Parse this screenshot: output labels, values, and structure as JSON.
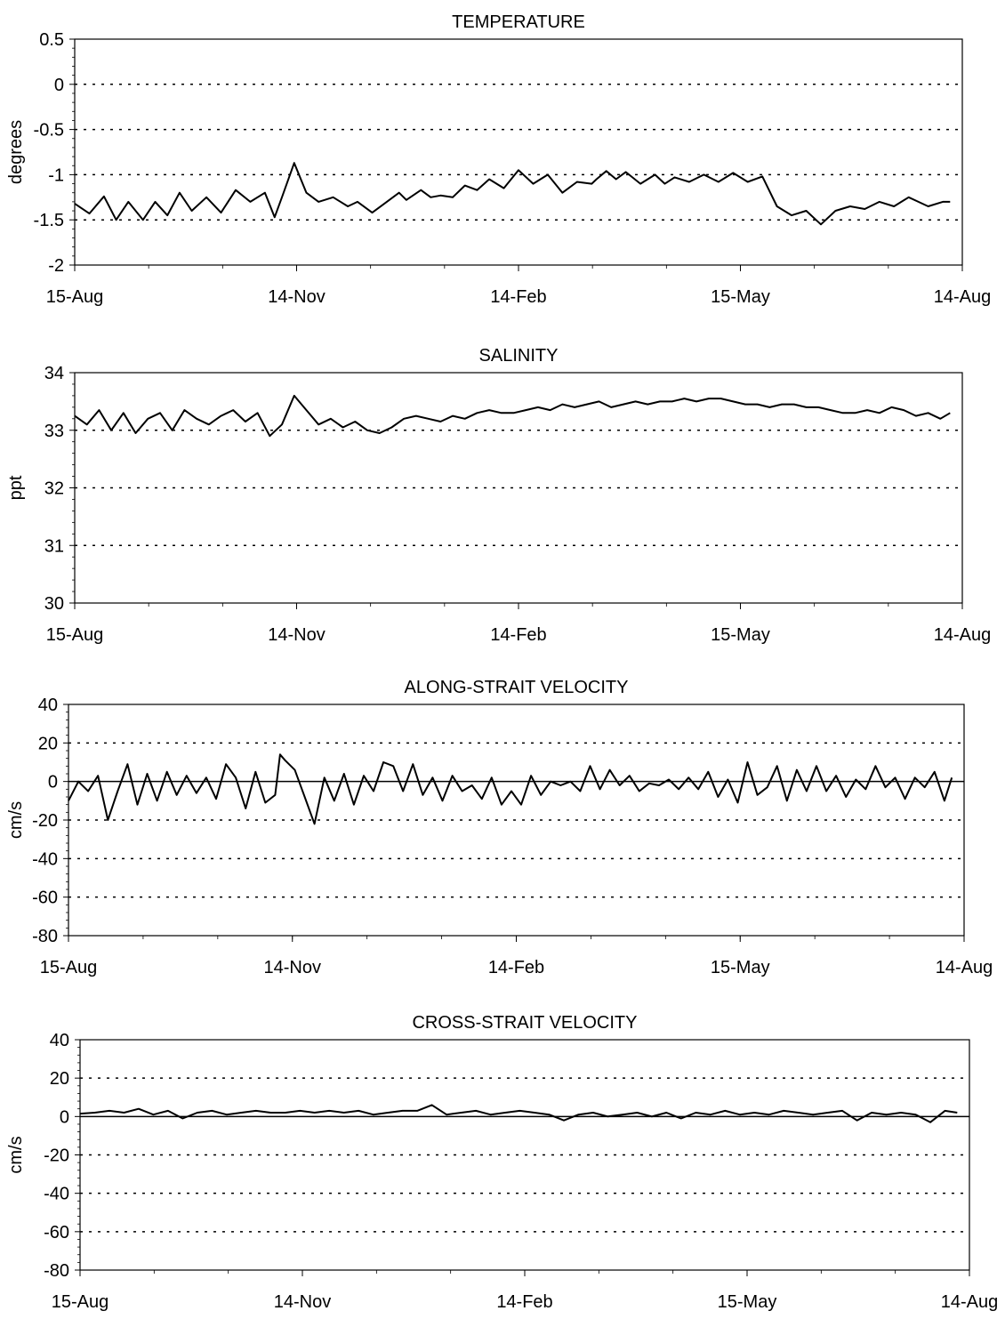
{
  "chart_data": [
    {
      "type": "line",
      "title": "TEMPERATURE",
      "ylabel": "degrees",
      "ylim": [
        -2,
        0.5
      ],
      "yticks": [
        "0.5",
        "0",
        "-0.5",
        "-1",
        "-1.5",
        "-2"
      ],
      "xticks": [
        "15-Aug",
        "14-Nov",
        "14-Feb",
        "15-May",
        "14-Aug"
      ],
      "xlim": [
        0,
        364
      ],
      "grid": "dotted horizontal",
      "zero_line": false,
      "series": [
        {
          "color": "#000000",
          "x": [
            0,
            6,
            12,
            17,
            22,
            28,
            33,
            38,
            43,
            48,
            54,
            60,
            66,
            72,
            78,
            82,
            85,
            90,
            95,
            100,
            106,
            112,
            116,
            122,
            128,
            133,
            136,
            142,
            146,
            150,
            155,
            160,
            165,
            170,
            176,
            182,
            188,
            194,
            200,
            206,
            212,
            214,
            218,
            222,
            226,
            232,
            238,
            242,
            246,
            252,
            258,
            264,
            270,
            276,
            282,
            288,
            294,
            300,
            306,
            312,
            318,
            324,
            330,
            336,
            342,
            346,
            350,
            356,
            359
          ],
          "values": [
            -1.32,
            -1.43,
            -1.24,
            -1.5,
            -1.3,
            -1.5,
            -1.3,
            -1.45,
            -1.2,
            -1.4,
            -1.25,
            -1.42,
            -1.17,
            -1.3,
            -1.2,
            -1.47,
            -1.25,
            -0.87,
            -1.2,
            -1.3,
            -1.25,
            -1.35,
            -1.3,
            -1.42,
            -1.3,
            -1.2,
            -1.28,
            -1.17,
            -1.25,
            -1.23,
            -1.25,
            -1.12,
            -1.17,
            -1.05,
            -1.15,
            -0.95,
            -1.1,
            -1.0,
            -1.2,
            -1.08,
            -1.1,
            -1.05,
            -0.96,
            -1.05,
            -0.97,
            -1.1,
            -1.0,
            -1.1,
            -1.03,
            -1.08,
            -1.0,
            -1.08,
            -0.98,
            -1.08,
            -1.02,
            -1.35,
            -1.45,
            -1.4,
            -1.55,
            -1.4,
            -1.35,
            -1.38,
            -1.3,
            -1.35,
            -1.25,
            -1.3,
            -1.35,
            -1.3,
            -1.3
          ]
        }
      ]
    },
    {
      "type": "line",
      "title": "SALINITY",
      "ylabel": "ppt",
      "ylim": [
        30,
        34
      ],
      "yticks": [
        "34",
        "33",
        "32",
        "31",
        "30"
      ],
      "xticks": [
        "15-Aug",
        "14-Nov",
        "14-Feb",
        "15-May",
        "14-Aug"
      ],
      "xlim": [
        0,
        364
      ],
      "grid": "dotted horizontal",
      "zero_line": false,
      "series": [
        {
          "color": "#000000",
          "x": [
            0,
            5,
            10,
            15,
            20,
            25,
            30,
            35,
            40,
            45,
            50,
            55,
            60,
            65,
            70,
            75,
            80,
            85,
            90,
            95,
            100,
            105,
            110,
            115,
            120,
            125,
            130,
            135,
            140,
            145,
            150,
            155,
            160,
            165,
            170,
            175,
            180,
            185,
            190,
            195,
            200,
            205,
            210,
            215,
            220,
            225,
            230,
            235,
            240,
            245,
            250,
            255,
            260,
            265,
            270,
            275,
            280,
            285,
            290,
            295,
            300,
            305,
            310,
            315,
            320,
            325,
            330,
            335,
            340,
            345,
            350,
            355,
            359
          ],
          "values": [
            33.25,
            33.1,
            33.35,
            33.0,
            33.3,
            32.95,
            33.2,
            33.3,
            33.0,
            33.35,
            33.2,
            33.1,
            33.25,
            33.35,
            33.15,
            33.3,
            32.9,
            33.1,
            33.6,
            33.35,
            33.1,
            33.2,
            33.05,
            33.15,
            33.0,
            32.95,
            33.05,
            33.2,
            33.25,
            33.2,
            33.15,
            33.25,
            33.2,
            33.3,
            33.35,
            33.3,
            33.3,
            33.35,
            33.4,
            33.35,
            33.45,
            33.4,
            33.45,
            33.5,
            33.4,
            33.45,
            33.5,
            33.45,
            33.5,
            33.5,
            33.55,
            33.5,
            33.55,
            33.55,
            33.5,
            33.45,
            33.45,
            33.4,
            33.45,
            33.45,
            33.4,
            33.4,
            33.35,
            33.3,
            33.3,
            33.35,
            33.3,
            33.4,
            33.35,
            33.25,
            33.3,
            33.2,
            33.3
          ]
        }
      ]
    },
    {
      "type": "line",
      "title": "ALONG-STRAIT VELOCITY",
      "ylabel": "cm/s",
      "ylim": [
        -80,
        40
      ],
      "yticks": [
        "40",
        "20",
        "0",
        "-20",
        "-40",
        "-60",
        "-80"
      ],
      "xticks": [
        "15-Aug",
        "14-Nov",
        "14-Feb",
        "15-May",
        "14-Aug"
      ],
      "xlim": [
        0,
        364
      ],
      "grid": "dotted horizontal",
      "zero_line": true,
      "series": [
        {
          "color": "#000000",
          "x": [
            0,
            4,
            8,
            12,
            16,
            20,
            24,
            28,
            32,
            36,
            40,
            44,
            48,
            52,
            56,
            60,
            64,
            68,
            72,
            76,
            80,
            84,
            86,
            88,
            92,
            96,
            100,
            104,
            108,
            112,
            116,
            120,
            124,
            128,
            132,
            136,
            140,
            144,
            148,
            152,
            156,
            160,
            164,
            168,
            172,
            176,
            180,
            184,
            188,
            192,
            196,
            200,
            204,
            208,
            212,
            216,
            220,
            224,
            228,
            232,
            236,
            240,
            244,
            248,
            252,
            256,
            260,
            264,
            268,
            272,
            276,
            280,
            284,
            288,
            292,
            296,
            300,
            304,
            308,
            312,
            316,
            320,
            324,
            328,
            332,
            336,
            340,
            344,
            348,
            352,
            356,
            359
          ],
          "values": [
            -10,
            0,
            -5,
            3,
            -20,
            -5,
            9,
            -12,
            4,
            -10,
            5,
            -7,
            3,
            -6,
            2,
            -9,
            9,
            2,
            -14,
            5,
            -11,
            -7,
            14,
            11,
            6,
            -8,
            -22,
            2,
            -10,
            4,
            -12,
            3,
            -5,
            10,
            8,
            -5,
            9,
            -7,
            2,
            -10,
            3,
            -5,
            -2,
            -9,
            2,
            -12,
            -5,
            -12,
            3,
            -7,
            0,
            -2,
            0,
            -5,
            8,
            -4,
            6,
            -2,
            3,
            -5,
            -1,
            -2,
            1,
            -4,
            2,
            -4,
            5,
            -8,
            1,
            -11,
            10,
            -7,
            -3,
            8,
            -10,
            6,
            -5,
            8,
            -5,
            3,
            -8,
            1,
            -4,
            8,
            -3,
            2,
            -9,
            2,
            -3,
            5,
            -10,
            2
          ]
        }
      ]
    },
    {
      "type": "line",
      "title": "CROSS-STRAIT VELOCITY",
      "ylabel": "cm/s",
      "ylim": [
        -80,
        40
      ],
      "yticks": [
        "40",
        "20",
        "0",
        "-20",
        "-40",
        "-60",
        "-80"
      ],
      "xticks": [
        "15-Aug",
        "14-Nov",
        "14-Feb",
        "15-May",
        "14-Aug"
      ],
      "xlim": [
        0,
        364
      ],
      "grid": "dotted horizontal",
      "zero_line": true,
      "series": [
        {
          "color": "#000000",
          "x": [
            0,
            6,
            12,
            18,
            24,
            30,
            36,
            42,
            48,
            54,
            60,
            66,
            72,
            78,
            84,
            90,
            96,
            102,
            108,
            114,
            120,
            126,
            132,
            138,
            144,
            150,
            156,
            162,
            168,
            174,
            180,
            186,
            192,
            198,
            204,
            210,
            216,
            222,
            228,
            234,
            240,
            246,
            252,
            258,
            264,
            270,
            276,
            282,
            288,
            294,
            300,
            306,
            312,
            318,
            324,
            330,
            336,
            342,
            348,
            354,
            359
          ],
          "values": [
            1.5,
            2,
            3,
            2,
            4,
            1,
            3,
            -1,
            2,
            3,
            1,
            2,
            3,
            2,
            2,
            3,
            2,
            3,
            2,
            3,
            1,
            2,
            3,
            3,
            6,
            1,
            2,
            3,
            1,
            2,
            3,
            2,
            1,
            -2,
            1,
            2,
            0,
            1,
            2,
            0,
            2,
            -1,
            2,
            1,
            3,
            1,
            2,
            1,
            3,
            2,
            1,
            2,
            3,
            -2,
            2,
            1,
            2,
            1,
            -3,
            3,
            2
          ]
        }
      ]
    }
  ]
}
